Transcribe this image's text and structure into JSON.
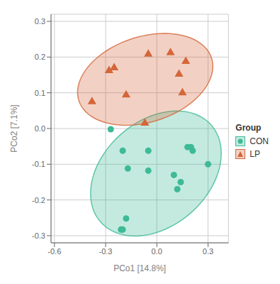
{
  "chart_data": {
    "type": "scatter",
    "xlabel": "PCo1 [14.8%]",
    "ylabel": "PCo2 [7.1%]",
    "xlim": [
      -0.62,
      0.42
    ],
    "ylim": [
      -0.32,
      0.32
    ],
    "xticks": [
      -0.6,
      -0.3,
      {
        "value": 0,
        "label": "0.0"
      },
      0.3
    ],
    "yticks": [
      -0.3,
      -0.2,
      -0.1,
      {
        "value": 0,
        "label": "0.0"
      },
      0.1,
      0.2,
      0.3
    ],
    "grid": true,
    "legend": "right",
    "legend_title": "Group",
    "series": [
      {
        "name": "CON",
        "color": "#3dba96",
        "marker": "circle",
        "x": [
          -0.27,
          -0.2,
          -0.17,
          -0.05,
          -0.05,
          0.18,
          0.2,
          0.21,
          0.3,
          0.1,
          0.14,
          0.12,
          -0.18,
          -0.2,
          -0.21
        ],
        "values": [
          -0.002,
          -0.062,
          -0.112,
          -0.062,
          -0.118,
          -0.052,
          -0.052,
          -0.062,
          -0.1,
          -0.13,
          -0.15,
          -0.17,
          -0.252,
          -0.283,
          -0.283
        ],
        "ellipse": {
          "cx": -0.00533,
          "cy": -0.126,
          "width": 0.7759,
          "height": 0.3274,
          "angle": 10.15
        }
      },
      {
        "name": "LP",
        "color": "#d4663a",
        "marker": "triangle",
        "x": [
          -0.38,
          -0.28,
          -0.25,
          -0.18,
          -0.07,
          -0.05,
          0.08,
          0.13,
          0.15,
          0.17
        ],
        "values": [
          0.075,
          0.162,
          0.17,
          0.094,
          0.015,
          0.208,
          0.212,
          0.152,
          0.1,
          0.188
        ],
        "ellipse": {
          "cx": -0.068,
          "cy": 0.1376,
          "width": 0.7965,
          "height": 0.2453,
          "angle": 5.81
        }
      }
    ]
  }
}
